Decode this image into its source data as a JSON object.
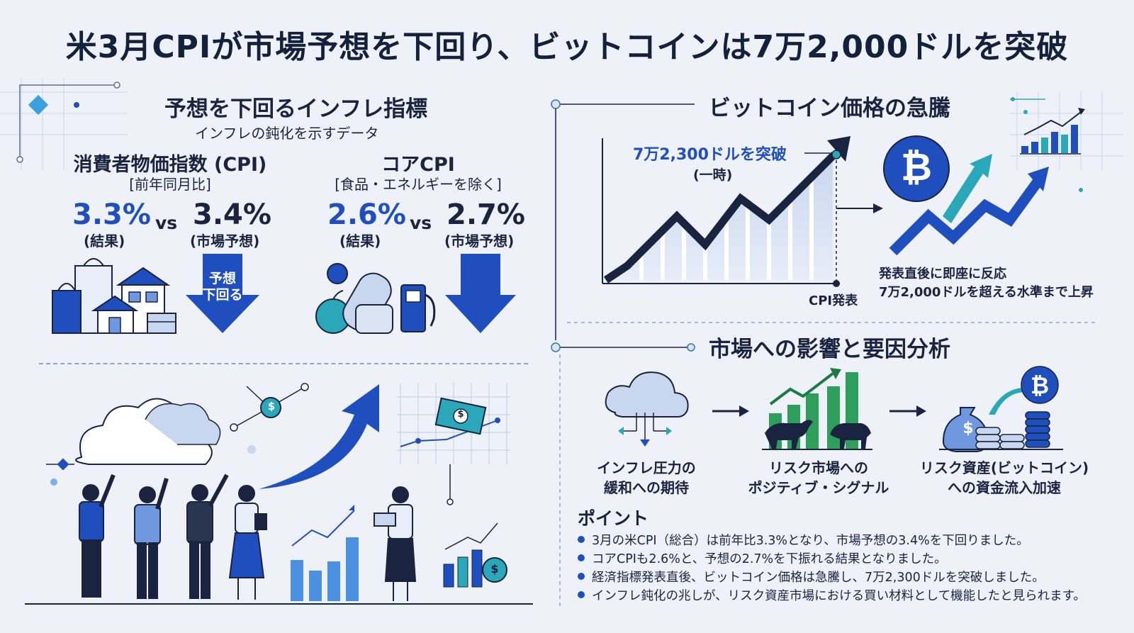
{
  "title": "米3月CPIが市場予想を下回り、ビットコインは7万2,000ドルを突破",
  "inflation": {
    "heading": "予想を下回るインフレ指標",
    "subheading": "インフレの鈍化を示すデータ",
    "cpi": {
      "label": "消費者物価指数 (CPI)",
      "bracket": "[前年同月比]",
      "result": "3.3%",
      "result_label": "(結果)",
      "vs": "vs",
      "forecast": "3.4%",
      "forecast_label": "(市場予想)",
      "arrow_text_1": "予想",
      "arrow_text_2": "下回る"
    },
    "core": {
      "label": "コアCPI",
      "bracket": "[食品・エネルギーを除く]",
      "result": "2.6%",
      "result_label": "(結果)",
      "vs": "vs",
      "forecast": "2.7%",
      "forecast_label": "(市場予想)"
    }
  },
  "bitcoin": {
    "heading": "ビットコイン価格の急騰",
    "peak_label": "7万2,300ドルを突破",
    "peak_sub": "(一時)",
    "cpi_marker": "CPI発表",
    "symbol": "₿",
    "note_1": "発表直後に即座に反応",
    "note_2": "7万2,000ドルを超える水準まで上昇"
  },
  "impact": {
    "heading": "市場への影響と要因分析",
    "steps": [
      {
        "line1": "インフレ圧力の",
        "line2": "緩和への期待"
      },
      {
        "line1": "リスク市場への",
        "line2": "ポジティブ・シグナル"
      },
      {
        "line1": "リスク資産(ビットコイン)",
        "line2": "への資金流入加速"
      }
    ]
  },
  "points": {
    "title": "ポイント",
    "items": [
      "3月の米CPI（総合）は前年比3.3%となり、市場予想の3.4%を下回りました。",
      "コアCPIも2.6%と、予想の2.7%を下振れる結果となりました。",
      "経済指標発表直後、ビットコイン価格は急騰し、7万2,300ドルを突破しました。",
      "インフレ鈍化の兆しが、リスク資産市場における買い材料として機能したと見られます。"
    ]
  },
  "icons": {
    "dollar": "$",
    "coin": "₿"
  },
  "colors": {
    "accent": "#1f4fbf",
    "dark": "#1a2440",
    "green": "#2e9e5b",
    "teal": "#2aa7b8"
  }
}
